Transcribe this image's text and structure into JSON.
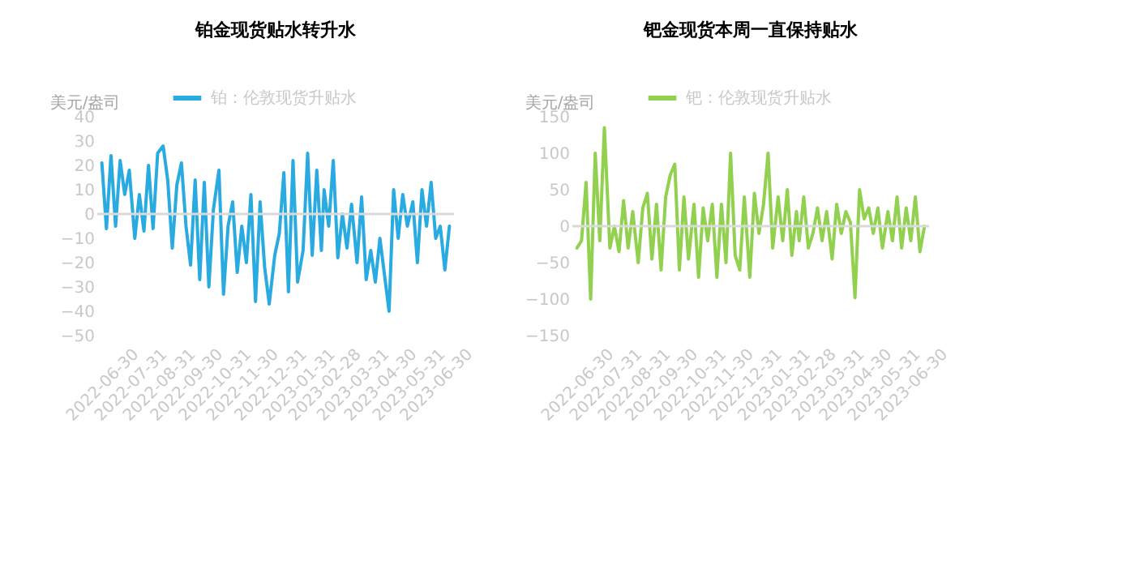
{
  "chart_data": [
    {
      "type": "line",
      "title": "铂金现货贴水转升水",
      "ylabel": "美元/盎司",
      "legend": "top",
      "grid": false,
      "marker": "none",
      "line_style": "solid",
      "x": [
        "2022-06-30",
        "2022-07-05",
        "2022-07-10",
        "2022-07-15",
        "2022-07-20",
        "2022-07-25",
        "2022-07-30",
        "2022-08-05",
        "2022-08-10",
        "2022-08-15",
        "2022-08-20",
        "2022-08-25",
        "2022-08-30",
        "2022-09-05",
        "2022-09-10",
        "2022-09-15",
        "2022-09-20",
        "2022-09-25",
        "2022-09-30",
        "2022-10-05",
        "2022-10-10",
        "2022-10-15",
        "2022-10-20",
        "2022-10-25",
        "2022-10-30",
        "2022-11-05",
        "2022-11-10",
        "2022-11-15",
        "2022-11-20",
        "2022-11-25",
        "2022-11-30",
        "2022-12-05",
        "2022-12-10",
        "2022-12-15",
        "2022-12-20",
        "2022-12-25",
        "2022-12-30",
        "2023-01-05",
        "2023-01-10",
        "2023-01-15",
        "2023-01-20",
        "2023-01-25",
        "2023-01-30",
        "2023-02-05",
        "2023-02-10",
        "2023-02-15",
        "2023-02-20",
        "2023-02-25",
        "2023-02-28",
        "2023-03-05",
        "2023-03-10",
        "2023-03-15",
        "2023-03-20",
        "2023-03-25",
        "2023-03-30",
        "2023-04-05",
        "2023-04-10",
        "2023-04-15",
        "2023-04-20",
        "2023-04-25",
        "2023-04-30",
        "2023-05-05",
        "2023-05-10",
        "2023-05-15",
        "2023-05-20",
        "2023-05-25",
        "2023-05-30",
        "2023-06-05",
        "2023-06-10",
        "2023-06-15",
        "2023-06-20",
        "2023-06-25",
        "2023-06-30",
        "2023-07-05",
        "2023-07-10",
        "2023-07-15"
      ],
      "series": [
        {
          "name": "铂：伦敦现货升贴水",
          "color": "#29abe2",
          "values": [
            21,
            -6,
            24,
            -5,
            22,
            8,
            18,
            -10,
            8,
            -7,
            20,
            -6,
            25,
            28,
            14,
            -14,
            12,
            21,
            -5,
            -21,
            14,
            -27,
            13,
            -30,
            2,
            18,
            -33,
            -5,
            5,
            -24,
            -5,
            -20,
            8,
            -36,
            5,
            -22,
            -37,
            -17,
            -8,
            17,
            -32,
            22,
            -28,
            -15,
            25,
            -17,
            18,
            -15,
            10,
            -5,
            22,
            -18,
            0,
            -14,
            4,
            -20,
            7,
            -27,
            -15,
            -28,
            -10,
            -25,
            -40,
            10,
            -10,
            8,
            -5,
            5,
            -20,
            10,
            -5,
            13,
            -10,
            -5,
            -23,
            -5
          ]
        }
      ],
      "xlim": [
        "2022-06-25",
        "2023-07-20"
      ],
      "xticks": [
        "2022-06-30",
        "2022-07-31",
        "2022-08-31",
        "2022-09-30",
        "2022-10-31",
        "2022-11-30",
        "2022-12-31",
        "2023-01-31",
        "2023-02-28",
        "2023-03-31",
        "2023-04-30",
        "2023-05-31",
        "2023-06-30"
      ],
      "ylim": [
        -50,
        40
      ],
      "yticks": [
        -50,
        -40,
        -30,
        -20,
        -10,
        0,
        10,
        20,
        30,
        40
      ],
      "ref_lines": [
        {
          "axis": "y",
          "value": 0,
          "color": "#d9d9d9"
        }
      ]
    },
    {
      "type": "line",
      "title": "钯金现货本周一直保持贴水",
      "ylabel": "美元/盎司",
      "legend": "top",
      "grid": false,
      "marker": "none",
      "line_style": "solid",
      "x": [
        "2022-06-30",
        "2022-07-05",
        "2022-07-10",
        "2022-07-15",
        "2022-07-20",
        "2022-07-25",
        "2022-07-30",
        "2022-08-05",
        "2022-08-10",
        "2022-08-15",
        "2022-08-20",
        "2022-08-25",
        "2022-08-30",
        "2022-09-05",
        "2022-09-10",
        "2022-09-15",
        "2022-09-20",
        "2022-09-25",
        "2022-09-30",
        "2022-10-05",
        "2022-10-10",
        "2022-10-15",
        "2022-10-20",
        "2022-10-25",
        "2022-10-30",
        "2022-11-05",
        "2022-11-10",
        "2022-11-15",
        "2022-11-20",
        "2022-11-25",
        "2022-11-30",
        "2022-12-05",
        "2022-12-10",
        "2022-12-15",
        "2022-12-20",
        "2022-12-25",
        "2022-12-30",
        "2023-01-05",
        "2023-01-10",
        "2023-01-15",
        "2023-01-20",
        "2023-01-25",
        "2023-01-30",
        "2023-02-05",
        "2023-02-10",
        "2023-02-15",
        "2023-02-20",
        "2023-02-25",
        "2023-02-28",
        "2023-03-05",
        "2023-03-10",
        "2023-03-15",
        "2023-03-20",
        "2023-03-25",
        "2023-03-30",
        "2023-04-05",
        "2023-04-10",
        "2023-04-15",
        "2023-04-20",
        "2023-04-25",
        "2023-04-30",
        "2023-05-05",
        "2023-05-10",
        "2023-05-15",
        "2023-05-20",
        "2023-05-25",
        "2023-05-30",
        "2023-06-05",
        "2023-06-10",
        "2023-06-15",
        "2023-06-20",
        "2023-06-25",
        "2023-06-30",
        "2023-07-05",
        "2023-07-10",
        "2023-07-15"
      ],
      "series": [
        {
          "name": "钯：伦敦现货升贴水",
          "color": "#92d050",
          "values": [
            -30,
            -20,
            60,
            -100,
            100,
            -20,
            135,
            -30,
            0,
            -35,
            35,
            -30,
            20,
            -50,
            25,
            45,
            -45,
            30,
            -60,
            40,
            70,
            85,
            -60,
            40,
            -45,
            30,
            -70,
            25,
            -20,
            30,
            -70,
            30,
            -50,
            100,
            -40,
            -60,
            40,
            -70,
            45,
            -10,
            30,
            100,
            -30,
            40,
            -20,
            50,
            -40,
            20,
            -20,
            40,
            -30,
            -10,
            25,
            -20,
            20,
            -45,
            30,
            -10,
            20,
            5,
            -98,
            50,
            10,
            25,
            -10,
            25,
            -30,
            20,
            -20,
            40,
            -30,
            25,
            -20,
            40,
            -35,
            0
          ]
        }
      ],
      "xlim": [
        "2022-06-25",
        "2023-07-20"
      ],
      "xticks": [
        "2022-06-30",
        "2022-07-31",
        "2022-08-31",
        "2022-09-30",
        "2022-10-31",
        "2022-11-30",
        "2022-12-31",
        "2023-01-31",
        "2023-02-28",
        "2023-03-31",
        "2023-04-30",
        "2023-05-31",
        "2023-06-30"
      ],
      "ylim": [
        -150,
        150
      ],
      "yticks": [
        -150,
        -100,
        -50,
        0,
        50,
        100,
        150
      ],
      "ref_lines": [
        {
          "axis": "y",
          "value": 0,
          "color": "#d9d9d9"
        }
      ]
    }
  ]
}
